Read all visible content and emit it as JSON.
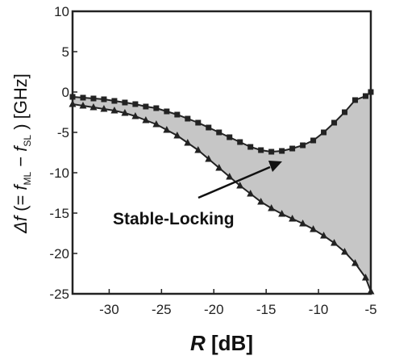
{
  "chart_data": {
    "type": "line",
    "xlabel": "R [dB]",
    "ylabel": "Δf (= f_ML − f_SL) [GHz]",
    "xlim": [
      -33.5,
      -5
    ],
    "ylim": [
      -25,
      10
    ],
    "x_ticks": [
      -30,
      -25,
      -20,
      -15,
      -10,
      -5
    ],
    "y_ticks": [
      10,
      5,
      0,
      -5,
      -10,
      -15,
      -20,
      -25
    ],
    "grid": false,
    "annotation": "Stable-Locking",
    "shaded_region": "between series, gray #c6c6c6",
    "series": [
      {
        "marker": "square",
        "x": [
          -33.5,
          -32.5,
          -31.5,
          -30.5,
          -29.5,
          -28.5,
          -27.5,
          -26.5,
          -25.5,
          -24.5,
          -23.5,
          -22.5,
          -21.5,
          -20.5,
          -19.5,
          -18.5,
          -17.5,
          -16.5,
          -15.5,
          -14.5,
          -13.5,
          -12.5,
          -11.5,
          -10.5,
          -9.5,
          -8.5,
          -7.5,
          -6.5,
          -5.5,
          -5
        ],
        "values": [
          -0.6,
          -0.7,
          -0.8,
          -0.9,
          -1.1,
          -1.3,
          -1.5,
          -1.8,
          -2.0,
          -2.4,
          -2.8,
          -3.3,
          -3.8,
          -4.4,
          -5.0,
          -5.6,
          -6.2,
          -6.8,
          -7.2,
          -7.4,
          -7.3,
          -7.0,
          -6.6,
          -6.0,
          -5.0,
          -3.8,
          -2.5,
          -1.0,
          -0.5,
          0
        ]
      },
      {
        "marker": "triangle",
        "x": [
          -33.5,
          -32.5,
          -31.5,
          -30.5,
          -29.5,
          -28.5,
          -27.5,
          -26.5,
          -25.5,
          -24.5,
          -23.5,
          -22.5,
          -21.5,
          -20.5,
          -19.5,
          -18.5,
          -17.5,
          -16.5,
          -15.5,
          -14.5,
          -13.5,
          -12.5,
          -11.5,
          -10.5,
          -9.5,
          -8.5,
          -7.5,
          -6.5,
          -5.5,
          -5
        ],
        "values": [
          -1.5,
          -1.7,
          -1.9,
          -2.1,
          -2.3,
          -2.6,
          -3.0,
          -3.5,
          -4.0,
          -4.7,
          -5.4,
          -6.3,
          -7.2,
          -8.3,
          -9.4,
          -10.5,
          -11.6,
          -12.6,
          -13.6,
          -14.4,
          -15.1,
          -15.7,
          -16.3,
          -17.0,
          -17.8,
          -18.7,
          -19.8,
          -21.2,
          -23.0,
          -24.7
        ]
      }
    ]
  }
}
